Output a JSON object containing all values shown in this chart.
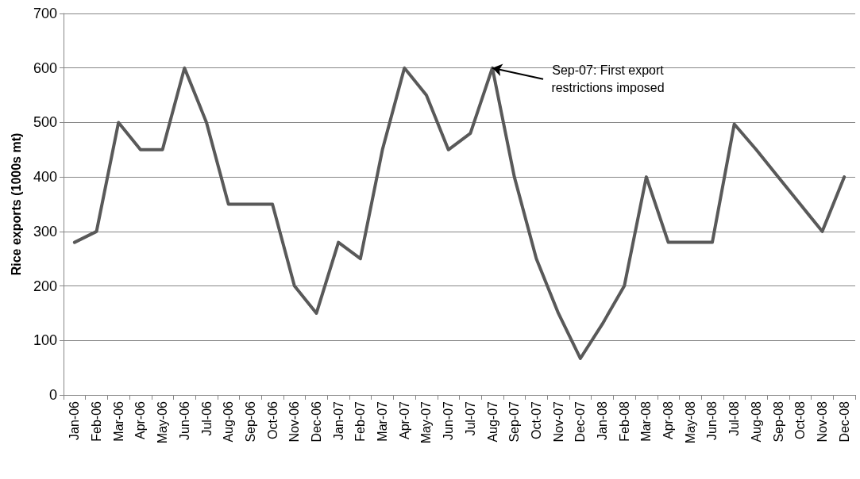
{
  "chart_data": {
    "type": "line",
    "ylabel": "Rice exports (1000s mt)",
    "categories": [
      "Jan-06",
      "Feb-06",
      "Mar-06",
      "Apr-06",
      "May-06",
      "Jun-06",
      "Jul-06",
      "Aug-06",
      "Sep-06",
      "Oct-06",
      "Nov-06",
      "Dec-06",
      "Jan-07",
      "Feb-07",
      "Mar-07",
      "Apr-07",
      "May-07",
      "Jun-07",
      "Jul-07",
      "Aug-07",
      "Sep-07",
      "Oct-07",
      "Nov-07",
      "Dec-07",
      "Jan-08",
      "Feb-08",
      "Mar-08",
      "Apr-08",
      "May-08",
      "Jun-08",
      "Jul-08",
      "Aug-08",
      "Sep-08",
      "Oct-08",
      "Nov-08",
      "Dec-08"
    ],
    "series": [
      {
        "color": "#595959",
        "values": [
          280,
          300,
          500,
          450,
          450,
          600,
          500,
          350,
          350,
          350,
          200,
          150,
          280,
          250,
          450,
          600,
          550,
          450,
          480,
          600,
          400,
          250,
          150,
          67,
          130,
          200,
          400,
          280,
          280,
          280,
          497,
          450,
          400,
          350,
          300,
          400
        ]
      }
    ],
    "ylim": [
      0,
      700
    ],
    "yticks": [
      0,
      100,
      200,
      300,
      400,
      500,
      600,
      700
    ],
    "grid": "y",
    "marker": "none",
    "line_style": "solid",
    "annotations": [
      {
        "text": "Sep-07: First export restrictions imposed",
        "x": "Aug-07",
        "y": 600
      }
    ]
  }
}
